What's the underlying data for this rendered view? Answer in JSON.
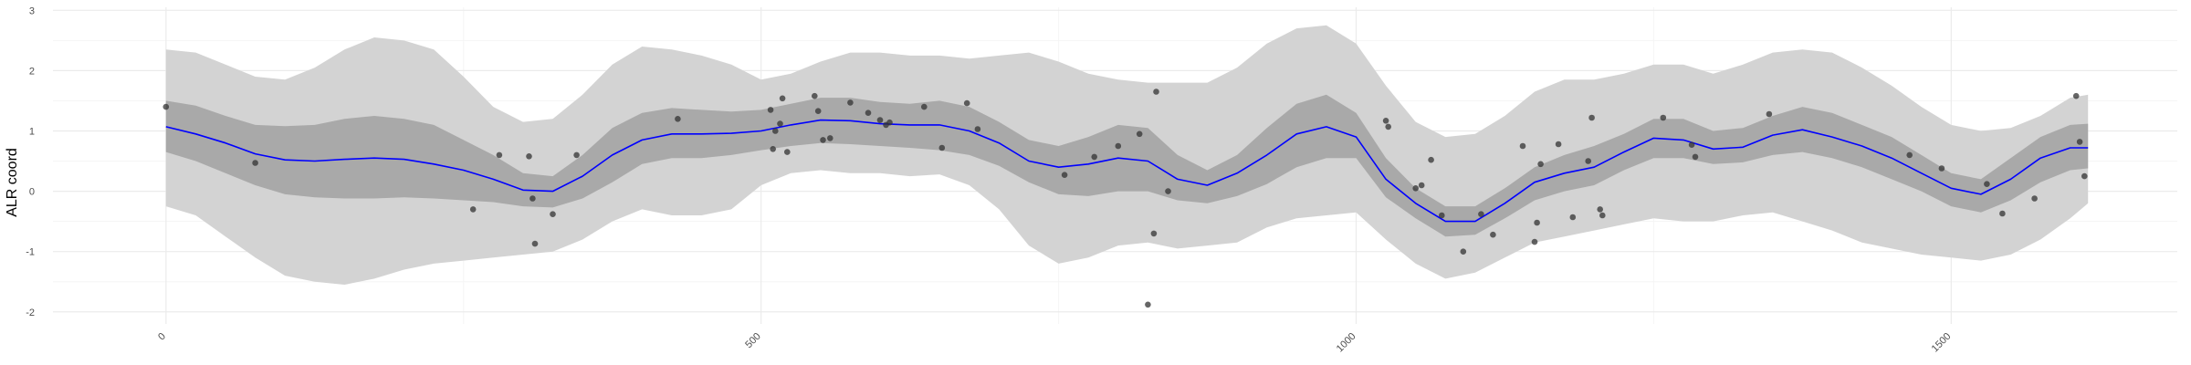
{
  "chart_data": {
    "type": "line",
    "title": "",
    "xlabel": "",
    "ylabel": "ALR coord",
    "xlim": [
      -95,
      1690
    ],
    "ylim": [
      -2.2,
      3.05
    ],
    "x_ticks": [
      0,
      500,
      1000,
      1500
    ],
    "x_tick_labels": [
      "0",
      "500",
      "1000",
      "1500"
    ],
    "y_ticks": [
      -2,
      -1,
      0,
      1,
      2,
      3
    ],
    "y_tick_labels": [
      "-2",
      "-1",
      "0",
      "1",
      "2",
      "3"
    ],
    "grid": true,
    "legend": "none",
    "colors": {
      "mean_line": "#0000ff",
      "inner_band": "#a9a9a9",
      "outer_band": "#d3d3d3",
      "points": "#333333",
      "grid_major": "#ebebeb",
      "grid_minor": "#f5f5f5"
    },
    "series": [
      {
        "role": "mean",
        "x": [
          0,
          25,
          50,
          75,
          100,
          125,
          150,
          175,
          200,
          225,
          250,
          275,
          300,
          325,
          350,
          375,
          400,
          425,
          450,
          475,
          500,
          525,
          550,
          575,
          600,
          625,
          650,
          675,
          700,
          725,
          750,
          775,
          800,
          825,
          850,
          875,
          900,
          925,
          950,
          975,
          1000,
          1025,
          1050,
          1075,
          1100,
          1125,
          1150,
          1175,
          1200,
          1225,
          1250,
          1275,
          1300,
          1325,
          1350,
          1375,
          1400,
          1425,
          1450,
          1475,
          1500,
          1525,
          1550,
          1575,
          1600,
          1615
        ],
        "y": [
          1.07,
          0.95,
          0.8,
          0.62,
          0.52,
          0.5,
          0.53,
          0.55,
          0.53,
          0.45,
          0.35,
          0.2,
          0.02,
          0.0,
          0.25,
          0.6,
          0.85,
          0.95,
          0.95,
          0.96,
          1.0,
          1.1,
          1.18,
          1.17,
          1.12,
          1.1,
          1.1,
          1.0,
          0.8,
          0.5,
          0.4,
          0.45,
          0.55,
          0.5,
          0.2,
          0.1,
          0.3,
          0.6,
          0.95,
          1.07,
          0.9,
          0.2,
          -0.2,
          -0.5,
          -0.5,
          -0.2,
          0.15,
          0.3,
          0.4,
          0.65,
          0.88,
          0.85,
          0.7,
          0.73,
          0.93,
          1.02,
          0.9,
          0.75,
          0.55,
          0.3,
          0.05,
          -0.05,
          0.2,
          0.55,
          0.72,
          0.72
        ]
      },
      {
        "role": "inner_band",
        "x": [
          0,
          25,
          50,
          75,
          100,
          125,
          150,
          175,
          200,
          225,
          250,
          275,
          300,
          325,
          350,
          375,
          400,
          425,
          450,
          475,
          500,
          525,
          550,
          575,
          600,
          625,
          650,
          675,
          700,
          725,
          750,
          775,
          800,
          825,
          850,
          875,
          900,
          925,
          950,
          975,
          1000,
          1025,
          1050,
          1075,
          1100,
          1125,
          1150,
          1175,
          1200,
          1225,
          1250,
          1275,
          1300,
          1325,
          1350,
          1375,
          1400,
          1425,
          1450,
          1475,
          1500,
          1525,
          1550,
          1575,
          1600,
          1615
        ],
        "lower": [
          0.65,
          0.5,
          0.3,
          0.1,
          -0.05,
          -0.1,
          -0.12,
          -0.12,
          -0.1,
          -0.12,
          -0.15,
          -0.18,
          -0.25,
          -0.27,
          -0.12,
          0.15,
          0.45,
          0.55,
          0.55,
          0.6,
          0.68,
          0.75,
          0.8,
          0.78,
          0.75,
          0.72,
          0.68,
          0.6,
          0.42,
          0.15,
          -0.05,
          -0.08,
          0.0,
          0.0,
          -0.15,
          -0.2,
          -0.08,
          0.12,
          0.4,
          0.55,
          0.55,
          -0.1,
          -0.45,
          -0.75,
          -0.72,
          -0.45,
          -0.15,
          0.0,
          0.1,
          0.35,
          0.55,
          0.55,
          0.45,
          0.48,
          0.6,
          0.65,
          0.55,
          0.4,
          0.2,
          0.0,
          -0.25,
          -0.35,
          -0.15,
          0.15,
          0.35,
          0.38
        ],
        "upper": [
          1.5,
          1.42,
          1.25,
          1.1,
          1.08,
          1.1,
          1.2,
          1.25,
          1.2,
          1.1,
          0.85,
          0.6,
          0.3,
          0.25,
          0.6,
          1.05,
          1.3,
          1.38,
          1.35,
          1.32,
          1.35,
          1.45,
          1.55,
          1.55,
          1.48,
          1.45,
          1.5,
          1.4,
          1.15,
          0.85,
          0.75,
          0.9,
          1.1,
          1.05,
          0.6,
          0.35,
          0.6,
          1.05,
          1.45,
          1.6,
          1.3,
          0.55,
          0.05,
          -0.25,
          -0.25,
          0.05,
          0.4,
          0.6,
          0.75,
          0.95,
          1.2,
          1.2,
          1.0,
          1.05,
          1.25,
          1.4,
          1.3,
          1.1,
          0.9,
          0.6,
          0.3,
          0.2,
          0.55,
          0.9,
          1.1,
          1.12
        ]
      },
      {
        "role": "outer_band",
        "x": [
          0,
          25,
          50,
          75,
          100,
          125,
          150,
          175,
          200,
          225,
          250,
          275,
          300,
          325,
          350,
          375,
          400,
          425,
          450,
          475,
          500,
          525,
          550,
          575,
          600,
          625,
          650,
          675,
          700,
          725,
          750,
          775,
          800,
          825,
          850,
          875,
          900,
          925,
          950,
          975,
          1000,
          1025,
          1050,
          1075,
          1100,
          1125,
          1150,
          1175,
          1200,
          1225,
          1250,
          1275,
          1300,
          1325,
          1350,
          1375,
          1400,
          1425,
          1450,
          1475,
          1500,
          1525,
          1550,
          1575,
          1600,
          1615
        ],
        "lower": [
          -0.25,
          -0.4,
          -0.75,
          -1.1,
          -1.4,
          -1.5,
          -1.55,
          -1.45,
          -1.3,
          -1.2,
          -1.15,
          -1.1,
          -1.05,
          -1.0,
          -0.8,
          -0.5,
          -0.3,
          -0.4,
          -0.4,
          -0.3,
          0.1,
          0.3,
          0.35,
          0.3,
          0.3,
          0.25,
          0.28,
          0.1,
          -0.3,
          -0.9,
          -1.2,
          -1.1,
          -0.9,
          -0.85,
          -0.95,
          -0.9,
          -0.85,
          -0.6,
          -0.45,
          -0.4,
          -0.35,
          -0.8,
          -1.2,
          -1.45,
          -1.35,
          -1.1,
          -0.85,
          -0.75,
          -0.65,
          -0.55,
          -0.45,
          -0.5,
          -0.5,
          -0.4,
          -0.35,
          -0.5,
          -0.65,
          -0.85,
          -0.95,
          -1.05,
          -1.1,
          -1.15,
          -1.05,
          -0.8,
          -0.45,
          -0.2
        ],
        "upper": [
          2.35,
          2.3,
          2.1,
          1.9,
          1.85,
          2.05,
          2.35,
          2.55,
          2.5,
          2.35,
          1.9,
          1.4,
          1.15,
          1.2,
          1.6,
          2.1,
          2.4,
          2.35,
          2.25,
          2.1,
          1.85,
          1.95,
          2.15,
          2.3,
          2.3,
          2.25,
          2.25,
          2.2,
          2.25,
          2.3,
          2.15,
          1.95,
          1.85,
          1.8,
          1.8,
          1.8,
          2.05,
          2.45,
          2.7,
          2.75,
          2.45,
          1.75,
          1.15,
          0.9,
          0.95,
          1.25,
          1.65,
          1.85,
          1.85,
          1.95,
          2.1,
          2.1,
          1.95,
          2.1,
          2.3,
          2.35,
          2.3,
          2.05,
          1.75,
          1.4,
          1.1,
          1.0,
          1.05,
          1.25,
          1.55,
          1.6
        ]
      },
      {
        "role": "observations",
        "points": [
          [
            0,
            1.4
          ],
          [
            75,
            0.47
          ],
          [
            258,
            -0.3
          ],
          [
            280,
            0.6
          ],
          [
            305,
            0.58
          ],
          [
            308,
            -0.12
          ],
          [
            310,
            -0.87
          ],
          [
            325,
            -0.38
          ],
          [
            345,
            0.6
          ],
          [
            430,
            1.2
          ],
          [
            508,
            1.35
          ],
          [
            510,
            0.7
          ],
          [
            512,
            1.0
          ],
          [
            516,
            1.12
          ],
          [
            518,
            1.54
          ],
          [
            522,
            0.65
          ],
          [
            545,
            1.58
          ],
          [
            548,
            1.33
          ],
          [
            552,
            0.85
          ],
          [
            558,
            0.88
          ],
          [
            575,
            1.47
          ],
          [
            590,
            1.3
          ],
          [
            600,
            1.18
          ],
          [
            605,
            1.1
          ],
          [
            608,
            1.14
          ],
          [
            637,
            1.4
          ],
          [
            652,
            0.72
          ],
          [
            673,
            1.46
          ],
          [
            682,
            1.03
          ],
          [
            755,
            0.27
          ],
          [
            780,
            0.57
          ],
          [
            800,
            0.75
          ],
          [
            818,
            0.95
          ],
          [
            825,
            -1.88
          ],
          [
            830,
            -0.7
          ],
          [
            832,
            1.65
          ],
          [
            842,
            0.0
          ],
          [
            1025,
            1.17
          ],
          [
            1027,
            1.07
          ],
          [
            1050,
            0.05
          ],
          [
            1055,
            0.1
          ],
          [
            1063,
            0.52
          ],
          [
            1072,
            -0.4
          ],
          [
            1090,
            -1.0
          ],
          [
            1105,
            -0.38
          ],
          [
            1115,
            -0.72
          ],
          [
            1140,
            0.75
          ],
          [
            1150,
            -0.84
          ],
          [
            1152,
            -0.52
          ],
          [
            1155,
            0.45
          ],
          [
            1170,
            0.78
          ],
          [
            1182,
            -0.43
          ],
          [
            1195,
            0.5
          ],
          [
            1198,
            1.22
          ],
          [
            1205,
            -0.3
          ],
          [
            1207,
            -0.4
          ],
          [
            1258,
            1.22
          ],
          [
            1282,
            0.77
          ],
          [
            1285,
            0.57
          ],
          [
            1347,
            1.28
          ],
          [
            1465,
            0.6
          ],
          [
            1492,
            0.38
          ],
          [
            1530,
            0.12
          ],
          [
            1543,
            -0.37
          ],
          [
            1570,
            -0.12
          ],
          [
            1605,
            1.58
          ],
          [
            1608,
            0.82
          ],
          [
            1612,
            0.25
          ]
        ]
      }
    ]
  }
}
